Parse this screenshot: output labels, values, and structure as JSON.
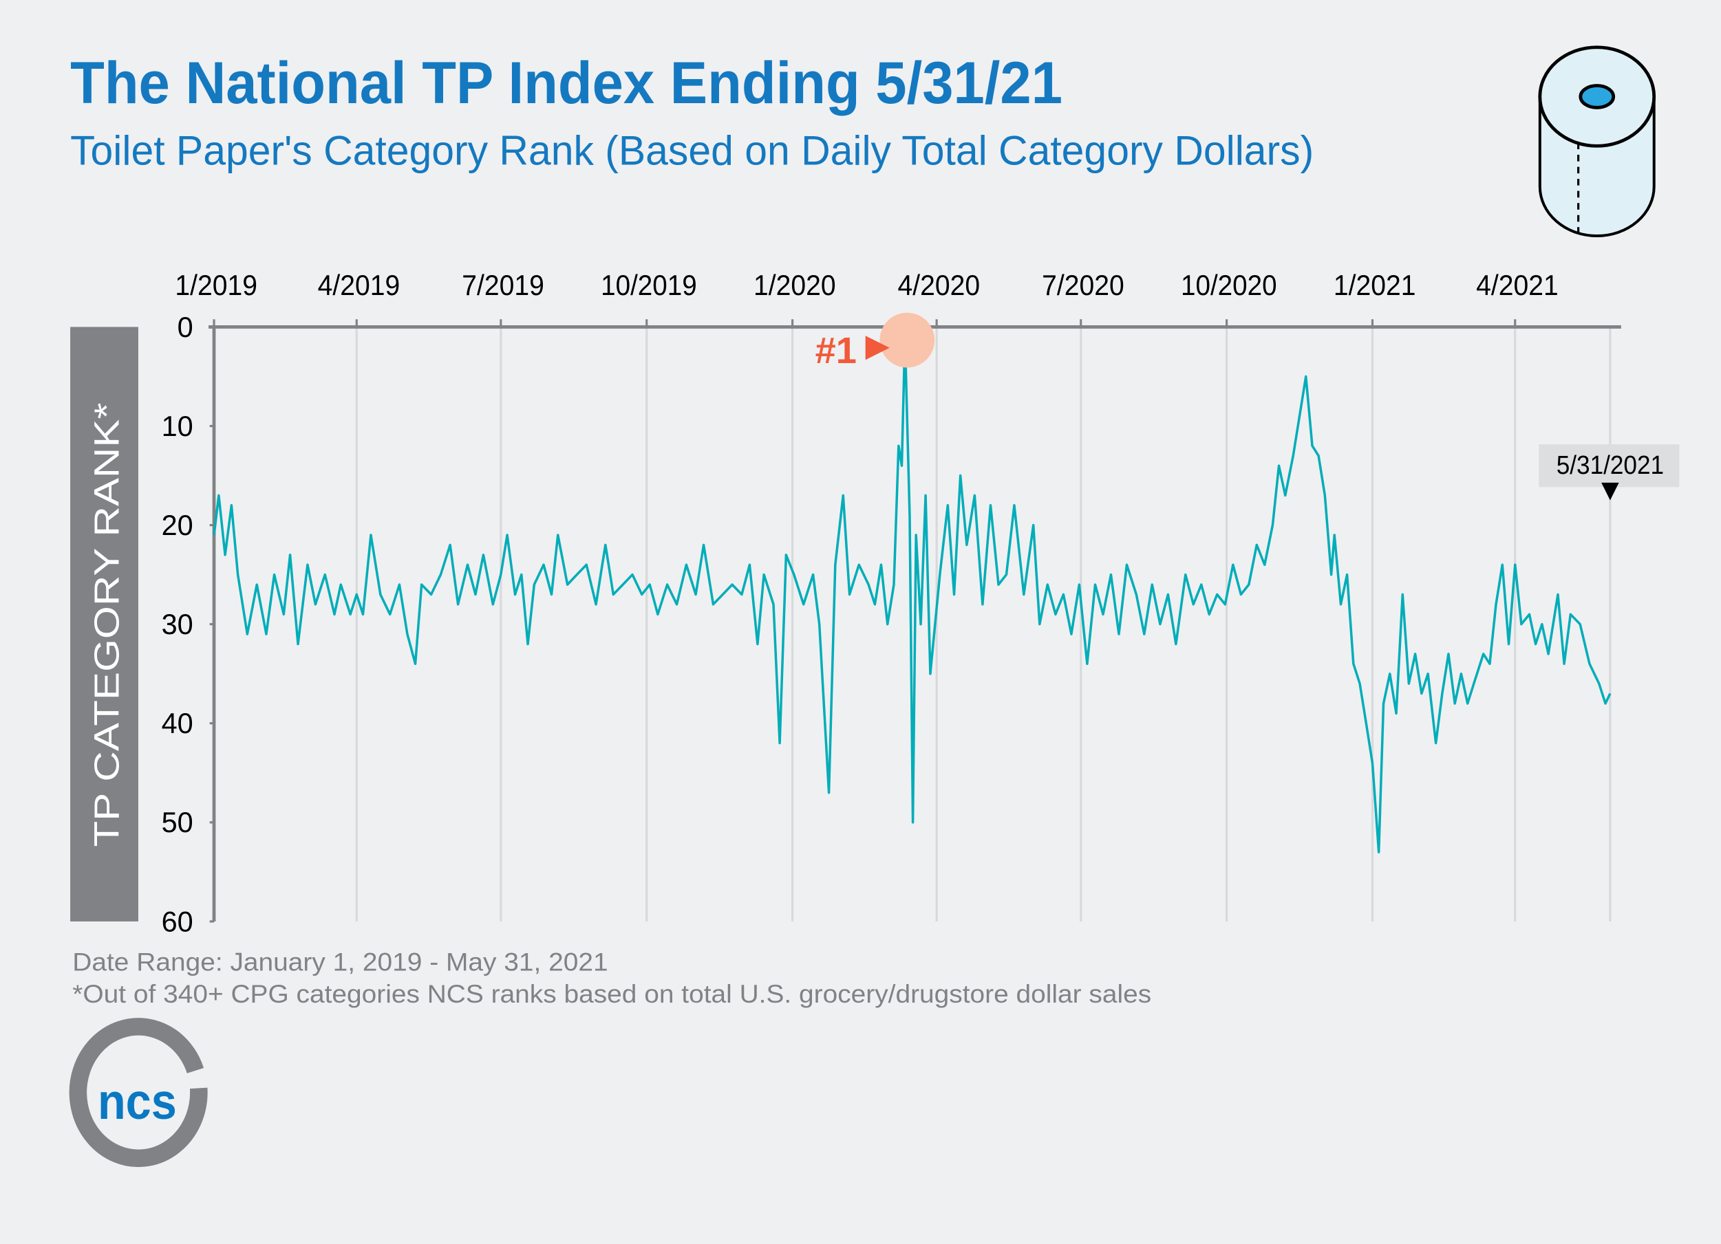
{
  "header": {
    "title": "The National TP Index Ending 5/31/21",
    "subtitle": "Toilet Paper's Category Rank (Based on Daily Total Category Dollars)"
  },
  "footer": {
    "date_range": "Date Range: January 1, 2019 - May 31, 2021",
    "note": "*Out of 340+ CPG categories NCS ranks based on total U.S. grocery/drugstore dollar sales"
  },
  "logo": {
    "text": "ncs",
    "color": "#0a78c2",
    "ring_color": "#808285"
  },
  "icons": {
    "corner": "toilet-paper-roll-icon"
  },
  "colors": {
    "line": "#00adb8",
    "title": "#1479c0",
    "highlight": "#f15a3a",
    "highlight_circle": "#f9c4ab",
    "ylabel_box": "#808285"
  },
  "chart_data": {
    "type": "line",
    "title": "The National TP Index Ending 5/31/21",
    "subtitle": "Toilet Paper's Category Rank (Based on Daily Total Category Dollars)",
    "xlabel": "",
    "ylabel": "TP CATEGORY RANK*",
    "ylim": [
      0,
      60
    ],
    "y_inverted": true,
    "yticks": [
      0,
      10,
      20,
      30,
      40,
      50,
      60
    ],
    "xlim": [
      "2019-01-01",
      "2021-05-31"
    ],
    "xaxis_position": "top",
    "xticks": [
      {
        "date": "2019-01-01",
        "label": "1/2019"
      },
      {
        "date": "2019-04-01",
        "label": "4/2019"
      },
      {
        "date": "2019-07-01",
        "label": "7/2019"
      },
      {
        "date": "2019-10-01",
        "label": "10/2019"
      },
      {
        "date": "2020-01-01",
        "label": "1/2020"
      },
      {
        "date": "2020-04-01",
        "label": "4/2020"
      },
      {
        "date": "2020-07-01",
        "label": "7/2020"
      },
      {
        "date": "2020-10-01",
        "label": "10/2020"
      },
      {
        "date": "2021-01-01",
        "label": "1/2021"
      },
      {
        "date": "2021-04-01",
        "label": "4/2021"
      }
    ],
    "grid": "vertical",
    "annotations": [
      {
        "text": "#1",
        "date": "2020-03-12",
        "value": 1
      },
      {
        "text": "5/31/2021",
        "date": "2021-05-31",
        "value": 37
      }
    ],
    "series": [
      {
        "x": [
          "2019-01-01",
          "2019-01-04",
          "2019-01-08",
          "2019-01-12",
          "2019-01-16",
          "2019-01-22",
          "2019-01-28",
          "2019-02-03",
          "2019-02-08",
          "2019-02-14",
          "2019-02-18",
          "2019-02-23",
          "2019-03-01",
          "2019-03-06",
          "2019-03-12",
          "2019-03-18",
          "2019-03-22",
          "2019-03-28",
          "2019-04-01",
          "2019-04-05",
          "2019-04-10",
          "2019-04-16",
          "2019-04-22",
          "2019-04-28",
          "2019-05-03",
          "2019-05-08",
          "2019-05-12",
          "2019-05-18",
          "2019-05-24",
          "2019-05-30",
          "2019-06-04",
          "2019-06-10",
          "2019-06-15",
          "2019-06-20",
          "2019-06-26",
          "2019-07-01",
          "2019-07-05",
          "2019-07-10",
          "2019-07-14",
          "2019-07-18",
          "2019-07-22",
          "2019-07-28",
          "2019-08-02",
          "2019-08-06",
          "2019-08-12",
          "2019-08-18",
          "2019-08-24",
          "2019-08-30",
          "2019-09-05",
          "2019-09-10",
          "2019-09-16",
          "2019-09-22",
          "2019-09-28",
          "2019-10-03",
          "2019-10-08",
          "2019-10-14",
          "2019-10-20",
          "2019-10-26",
          "2019-11-01",
          "2019-11-06",
          "2019-11-12",
          "2019-11-18",
          "2019-11-24",
          "2019-11-30",
          "2019-12-05",
          "2019-12-10",
          "2019-12-14",
          "2019-12-20",
          "2019-12-24",
          "2019-12-28",
          "2020-01-02",
          "2020-01-08",
          "2020-01-14",
          "2020-01-18",
          "2020-01-24",
          "2020-01-28",
          "2020-02-02",
          "2020-02-06",
          "2020-02-12",
          "2020-02-18",
          "2020-02-22",
          "2020-02-26",
          "2020-03-01",
          "2020-03-05",
          "2020-03-08",
          "2020-03-10",
          "2020-03-12",
          "2020-03-15",
          "2020-03-17",
          "2020-03-19",
          "2020-03-22",
          "2020-03-25",
          "2020-03-28",
          "2020-04-03",
          "2020-04-08",
          "2020-04-12",
          "2020-04-16",
          "2020-04-20",
          "2020-04-25",
          "2020-04-30",
          "2020-05-05",
          "2020-05-10",
          "2020-05-15",
          "2020-05-20",
          "2020-05-26",
          "2020-06-01",
          "2020-06-05",
          "2020-06-10",
          "2020-06-15",
          "2020-06-20",
          "2020-06-25",
          "2020-06-30",
          "2020-07-05",
          "2020-07-10",
          "2020-07-15",
          "2020-07-20",
          "2020-07-25",
          "2020-07-30",
          "2020-08-05",
          "2020-08-10",
          "2020-08-15",
          "2020-08-20",
          "2020-08-25",
          "2020-08-30",
          "2020-09-05",
          "2020-09-10",
          "2020-09-15",
          "2020-09-20",
          "2020-09-25",
          "2020-09-30",
          "2020-10-05",
          "2020-10-10",
          "2020-10-15",
          "2020-10-20",
          "2020-10-25",
          "2020-10-30",
          "2020-11-03",
          "2020-11-07",
          "2020-11-12",
          "2020-11-16",
          "2020-11-20",
          "2020-11-24",
          "2020-11-28",
          "2020-12-02",
          "2020-12-06",
          "2020-12-08",
          "2020-12-12",
          "2020-12-16",
          "2020-12-20",
          "2020-12-24",
          "2020-12-28",
          "2021-01-01",
          "2021-01-05",
          "2021-01-08",
          "2021-01-12",
          "2021-01-16",
          "2021-01-20",
          "2021-01-24",
          "2021-01-28",
          "2021-02-01",
          "2021-02-05",
          "2021-02-10",
          "2021-02-14",
          "2021-02-18",
          "2021-02-22",
          "2021-02-26",
          "2021-03-02",
          "2021-03-06",
          "2021-03-12",
          "2021-03-16",
          "2021-03-20",
          "2021-03-24",
          "2021-03-28",
          "2021-04-01",
          "2021-04-05",
          "2021-04-10",
          "2021-04-14",
          "2021-04-18",
          "2021-04-22",
          "2021-04-28",
          "2021-05-02",
          "2021-05-06",
          "2021-05-12",
          "2021-05-18",
          "2021-05-24",
          "2021-05-28",
          "2021-05-31"
        ],
        "values": [
          21,
          17,
          23,
          18,
          25,
          31,
          26,
          31,
          25,
          29,
          23,
          32,
          24,
          28,
          25,
          29,
          26,
          29,
          27,
          29,
          21,
          27,
          29,
          26,
          31,
          34,
          26,
          27,
          25,
          22,
          28,
          24,
          27,
          23,
          28,
          25,
          21,
          27,
          25,
          32,
          26,
          24,
          27,
          21,
          26,
          25,
          24,
          28,
          22,
          27,
          26,
          25,
          27,
          26,
          29,
          26,
          28,
          24,
          27,
          22,
          28,
          27,
          26,
          27,
          24,
          32,
          25,
          28,
          42,
          23,
          25,
          28,
          25,
          30,
          47,
          24,
          17,
          27,
          24,
          26,
          28,
          24,
          30,
          26,
          12,
          14,
          1,
          19,
          50,
          21,
          30,
          17,
          35,
          25,
          18,
          27,
          15,
          22,
          17,
          28,
          18,
          26,
          25,
          18,
          27,
          20,
          30,
          26,
          29,
          27,
          31,
          26,
          34,
          26,
          29,
          25,
          31,
          24,
          27,
          31,
          26,
          30,
          27,
          32,
          25,
          28,
          26,
          29,
          27,
          28,
          24,
          27,
          26,
          22,
          24,
          20,
          14,
          17,
          13,
          9,
          5,
          12,
          13,
          17,
          25,
          21,
          28,
          25,
          34,
          36,
          40,
          44,
          53,
          38,
          35,
          39,
          27,
          36,
          33,
          37,
          35,
          42,
          37,
          33,
          38,
          35,
          38,
          36,
          33,
          34,
          28,
          24,
          32,
          24,
          30,
          29,
          32,
          30,
          33,
          27,
          34,
          29,
          30,
          34,
          36,
          38,
          37
        ]
      }
    ]
  }
}
